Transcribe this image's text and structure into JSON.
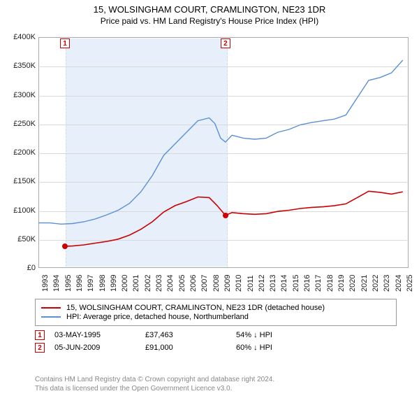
{
  "title": "15, WOLSINGHAM COURT, CRAMLINGTON, NE23 1DR",
  "subtitle": "Price paid vs. HM Land Registry's House Price Index (HPI)",
  "chart": {
    "type": "line",
    "background_color": "#ffffff",
    "grid_color": "#d9d9d9",
    "x": {
      "min": 1993,
      "max": 2025.5,
      "ticks": [
        1993,
        1994,
        1995,
        1996,
        1997,
        1998,
        1999,
        2000,
        2001,
        2002,
        2003,
        2004,
        2005,
        2006,
        2007,
        2008,
        2009,
        2010,
        2011,
        2012,
        2013,
        2014,
        2015,
        2016,
        2017,
        2018,
        2019,
        2020,
        2021,
        2022,
        2023,
        2024,
        2025
      ]
    },
    "y": {
      "min": 0,
      "max": 400000,
      "ticks": [
        0,
        50000,
        100000,
        150000,
        200000,
        250000,
        300000,
        350000,
        400000
      ],
      "tick_labels": [
        "£0",
        "£50K",
        "£100K",
        "£150K",
        "£200K",
        "£250K",
        "£300K",
        "£350K",
        "£400K"
      ]
    },
    "shade": {
      "from": 1995.33,
      "to": 2009.43,
      "color": "rgba(120,170,230,0.18)"
    },
    "series": [
      {
        "id": "hpi",
        "label": "HPI: Average price, detached house, Northumberland",
        "color": "#5b8fd6",
        "width": 1.4,
        "points": [
          [
            1993,
            78000
          ],
          [
            1994,
            78000
          ],
          [
            1995,
            76000
          ],
          [
            1996,
            77000
          ],
          [
            1997,
            80000
          ],
          [
            1998,
            85000
          ],
          [
            1999,
            92000
          ],
          [
            2000,
            100000
          ],
          [
            2001,
            112000
          ],
          [
            2002,
            132000
          ],
          [
            2003,
            160000
          ],
          [
            2004,
            195000
          ],
          [
            2005,
            215000
          ],
          [
            2006,
            235000
          ],
          [
            2007,
            255000
          ],
          [
            2008,
            260000
          ],
          [
            2008.5,
            250000
          ],
          [
            2009,
            225000
          ],
          [
            2009.43,
            218000
          ],
          [
            2010,
            230000
          ],
          [
            2011,
            225000
          ],
          [
            2012,
            223000
          ],
          [
            2013,
            225000
          ],
          [
            2014,
            235000
          ],
          [
            2015,
            240000
          ],
          [
            2016,
            248000
          ],
          [
            2017,
            252000
          ],
          [
            2018,
            255000
          ],
          [
            2019,
            258000
          ],
          [
            2020,
            265000
          ],
          [
            2021,
            295000
          ],
          [
            2022,
            325000
          ],
          [
            2023,
            330000
          ],
          [
            2024,
            338000
          ],
          [
            2025,
            360000
          ]
        ]
      },
      {
        "id": "price",
        "label": "15, WOLSINGHAM COURT, CRAMLINGTON, NE23 1DR (detached house)",
        "color": "#cc0000",
        "width": 1.6,
        "points": [
          [
            1995.33,
            37463
          ],
          [
            1996,
            38000
          ],
          [
            1997,
            40000
          ],
          [
            1998,
            43000
          ],
          [
            1999,
            46000
          ],
          [
            2000,
            50000
          ],
          [
            2001,
            57000
          ],
          [
            2002,
            67000
          ],
          [
            2003,
            80000
          ],
          [
            2004,
            97000
          ],
          [
            2005,
            108000
          ],
          [
            2006,
            115000
          ],
          [
            2007,
            123000
          ],
          [
            2008,
            122000
          ],
          [
            2008.7,
            108000
          ],
          [
            2009.43,
            91000
          ],
          [
            2010,
            96000
          ],
          [
            2011,
            94000
          ],
          [
            2012,
            93000
          ],
          [
            2013,
            94000
          ],
          [
            2014,
            98000
          ],
          [
            2015,
            100000
          ],
          [
            2016,
            103000
          ],
          [
            2017,
            105000
          ],
          [
            2018,
            106000
          ],
          [
            2019,
            108000
          ],
          [
            2020,
            111000
          ],
          [
            2021,
            122000
          ],
          [
            2022,
            133000
          ],
          [
            2023,
            131000
          ],
          [
            2024,
            128000
          ],
          [
            2025,
            132000
          ]
        ],
        "markers": [
          {
            "n": "1",
            "x": 1995.33,
            "y": 37463
          },
          {
            "n": "2",
            "x": 2009.43,
            "y": 91000
          }
        ]
      }
    ]
  },
  "legend": [
    {
      "color": "#cc0000",
      "label": "15, WOLSINGHAM COURT, CRAMLINGTON, NE23 1DR (detached house)"
    },
    {
      "color": "#5b8fd6",
      "label": "HPI: Average price, detached house, Northumberland"
    }
  ],
  "sales": [
    {
      "n": "1",
      "date": "03-MAY-1995",
      "price": "£37,463",
      "pct": "54%",
      "arrow": "↓",
      "vs": "HPI"
    },
    {
      "n": "2",
      "date": "05-JUN-2009",
      "price": "£91,000",
      "pct": "60%",
      "arrow": "↓",
      "vs": "HPI"
    }
  ],
  "footer": {
    "l1": "Contains HM Land Registry data © Crown copyright and database right 2024.",
    "l2": "This data is licensed under the Open Government Licence v3.0."
  },
  "style": {
    "title_fontsize": 13,
    "axis_fontsize": 11,
    "legend_fontsize": 11,
    "marker_border_color": "#cc0000"
  }
}
